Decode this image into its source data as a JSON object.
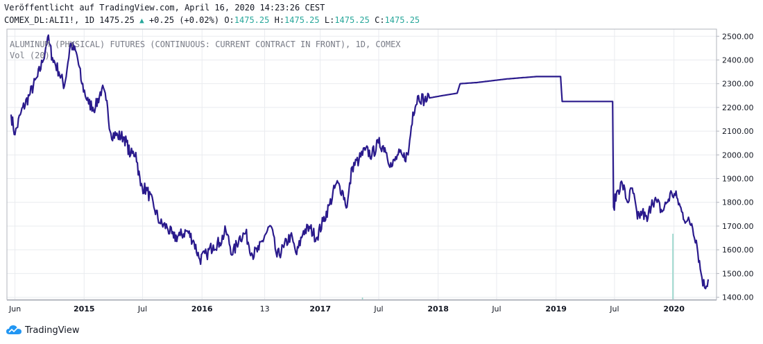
{
  "header": {
    "published_line": "Veröffentlicht auf TradingView.com, April 16, 2020 14:23:26 CEST",
    "symbol": "COMEX_DL:ALI1!, 1D 1475.25",
    "change": "+0.25 (+0.02%)",
    "o_label": "O:",
    "o_value": "1475.25",
    "h_label": "H:",
    "h_value": "1475.25",
    "l_label": "L:",
    "l_value": "1475.25",
    "c_label": "C:",
    "c_value": "1475.25"
  },
  "overlay": {
    "title": "ALUMINUM (PHYSICAL) FUTURES (CONTINUOUS: CURRENT CONTRACT IN FRONT), 1D, COMEX",
    "volume": "Vol (20)"
  },
  "footer": {
    "brand": "TradingView"
  },
  "colors": {
    "line": "#2a1a8c",
    "grid": "#e9ebef",
    "volume_spike": "#8fd3c7",
    "up": "#26a69a"
  },
  "chart_data": {
    "type": "line",
    "ylim": [
      1390,
      2530
    ],
    "xlim": [
      "2014-05-20",
      "2020-04-16"
    ],
    "y_ticks": [
      1400,
      1500,
      1600,
      1700,
      1800,
      1900,
      2000,
      2100,
      2200,
      2300,
      2400,
      2500
    ],
    "y_tick_labels": [
      "1400.00",
      "1500.00",
      "1600.00",
      "1700.00",
      "1800.00",
      "1900.00",
      "2000.00",
      "2100.00",
      "2200.00",
      "2300.00",
      "2400.00",
      "2500.00"
    ],
    "x_ticks": [
      {
        "label": "Jun",
        "date": "2014-06-01",
        "bold": false
      },
      {
        "label": "2015",
        "date": "2015-01-01",
        "bold": true
      },
      {
        "label": "Jul",
        "date": "2015-07-01",
        "bold": false
      },
      {
        "label": "2016",
        "date": "2016-01-01",
        "bold": true
      },
      {
        "label": "13",
        "date": "2016-07-13",
        "bold": false
      },
      {
        "label": "2017",
        "date": "2017-01-01",
        "bold": true
      },
      {
        "label": "Jul",
        "date": "2017-07-01",
        "bold": false
      },
      {
        "label": "2018",
        "date": "2018-01-01",
        "bold": true
      },
      {
        "label": "Jul",
        "date": "2018-07-01",
        "bold": false
      },
      {
        "label": "2019",
        "date": "2019-01-01",
        "bold": true
      },
      {
        "label": "Jul",
        "date": "2019-07-01",
        "bold": false
      },
      {
        "label": "2020",
        "date": "2020-01-01",
        "bold": true
      }
    ],
    "last_value": 1475.25,
    "series": [
      {
        "points": [
          [
            "2014-05-20",
            2170
          ],
          [
            "2014-06-01",
            2085
          ],
          [
            "2014-06-20",
            2180
          ],
          [
            "2014-07-15",
            2250
          ],
          [
            "2014-08-10",
            2330
          ],
          [
            "2014-08-25",
            2390
          ],
          [
            "2014-09-10",
            2495
          ],
          [
            "2014-09-25",
            2410
          ],
          [
            "2014-10-15",
            2350
          ],
          [
            "2014-11-01",
            2290
          ],
          [
            "2014-11-20",
            2470
          ],
          [
            "2014-12-10",
            2420
          ],
          [
            "2014-12-25",
            2300
          ],
          [
            "2015-01-15",
            2215
          ],
          [
            "2015-02-05",
            2200
          ],
          [
            "2015-02-25",
            2280
          ],
          [
            "2015-03-10",
            2230
          ],
          [
            "2015-03-25",
            2090
          ],
          [
            "2015-04-15",
            2080
          ],
          [
            "2015-05-05",
            2075
          ],
          [
            "2015-05-25",
            2000
          ],
          [
            "2015-06-10",
            2010
          ],
          [
            "2015-06-25",
            1870
          ],
          [
            "2015-07-15",
            1850
          ],
          [
            "2015-08-05",
            1780
          ],
          [
            "2015-08-25",
            1710
          ],
          [
            "2015-09-15",
            1695
          ],
          [
            "2015-10-05",
            1650
          ],
          [
            "2015-10-25",
            1660
          ],
          [
            "2015-11-15",
            1680
          ],
          [
            "2015-12-05",
            1640
          ],
          [
            "2015-12-25",
            1560
          ],
          [
            "2016-01-15",
            1580
          ],
          [
            "2016-02-05",
            1620
          ],
          [
            "2016-02-25",
            1630
          ],
          [
            "2016-03-15",
            1680
          ],
          [
            "2016-04-05",
            1580
          ],
          [
            "2016-04-25",
            1650
          ],
          [
            "2016-05-15",
            1670
          ],
          [
            "2016-06-05",
            1580
          ],
          [
            "2016-06-25",
            1600
          ],
          [
            "2016-07-13",
            1660
          ],
          [
            "2016-08-01",
            1700
          ],
          [
            "2016-08-20",
            1570
          ],
          [
            "2016-09-10",
            1610
          ],
          [
            "2016-10-01",
            1660
          ],
          [
            "2016-10-20",
            1580
          ],
          [
            "2016-11-10",
            1680
          ],
          [
            "2016-12-01",
            1690
          ],
          [
            "2016-12-20",
            1650
          ],
          [
            "2017-01-10",
            1720
          ],
          [
            "2017-01-30",
            1790
          ],
          [
            "2017-02-20",
            1880
          ],
          [
            "2017-03-10",
            1850
          ],
          [
            "2017-03-25",
            1780
          ],
          [
            "2017-04-10",
            1950
          ],
          [
            "2017-05-01",
            1980
          ],
          [
            "2017-05-20",
            2020
          ],
          [
            "2017-06-10",
            2000
          ],
          [
            "2017-06-30",
            2050
          ],
          [
            "2017-07-20",
            2030
          ],
          [
            "2017-08-10",
            1950
          ],
          [
            "2017-08-30",
            2000
          ],
          [
            "2017-09-15",
            1990
          ],
          [
            "2017-09-30",
            2000
          ],
          [
            "2017-10-15",
            2180
          ],
          [
            "2017-11-01",
            2250
          ],
          [
            "2017-11-20",
            2230
          ],
          [
            "2017-12-05",
            2240
          ],
          [
            "2018-01-15",
            2250
          ],
          [
            "2018-03-01",
            2260
          ],
          [
            "2018-03-10",
            2300
          ],
          [
            "2018-05-01",
            2305
          ],
          [
            "2018-08-01",
            2320
          ],
          [
            "2018-11-01",
            2330
          ],
          [
            "2019-01-15",
            2330
          ],
          [
            "2019-01-20",
            2225
          ],
          [
            "2019-06-25",
            2225
          ],
          [
            "2019-06-28",
            1780
          ],
          [
            "2019-07-10",
            1850
          ],
          [
            "2019-07-25",
            1880
          ],
          [
            "2019-08-10",
            1800
          ],
          [
            "2019-08-25",
            1860
          ],
          [
            "2019-09-10",
            1730
          ],
          [
            "2019-09-25",
            1760
          ],
          [
            "2019-10-10",
            1720
          ],
          [
            "2019-10-25",
            1810
          ],
          [
            "2019-11-10",
            1800
          ],
          [
            "2019-11-25",
            1760
          ],
          [
            "2019-12-10",
            1800
          ],
          [
            "2019-12-25",
            1840
          ],
          [
            "2020-01-10",
            1820
          ],
          [
            "2020-01-25",
            1760
          ],
          [
            "2020-02-10",
            1720
          ],
          [
            "2020-02-25",
            1710
          ],
          [
            "2020-03-10",
            1640
          ],
          [
            "2020-03-25",
            1500
          ],
          [
            "2020-04-05",
            1440
          ],
          [
            "2020-04-16",
            1475.25
          ]
        ]
      }
    ],
    "volume": [
      {
        "date": "2019-12-27",
        "value": 1.0
      },
      {
        "date": "2017-05-10",
        "value": 0.03
      }
    ]
  }
}
